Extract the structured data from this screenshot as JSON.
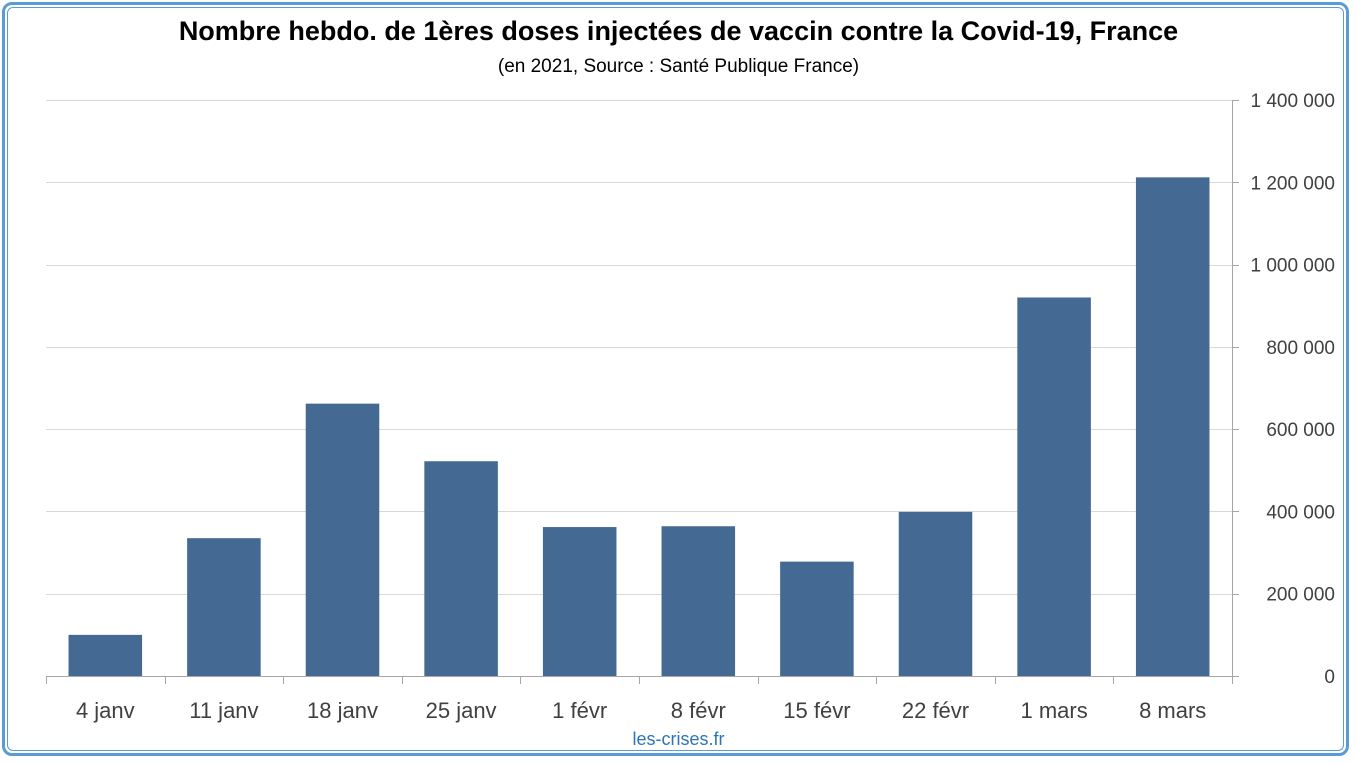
{
  "chart_data": {
    "type": "bar",
    "title": "Nombre hebdo. de 1ères doses injectées de vaccin contre la Covid-19, France",
    "subtitle": "(en 2021, Source : Santé Publique France)",
    "categories": [
      "4 janv",
      "11 janv",
      "18 janv",
      "25 janv",
      "1 févr",
      "8 févr",
      "15 févr",
      "22 févr",
      "1 mars",
      "8 mars"
    ],
    "values": [
      100000,
      335000,
      662000,
      522000,
      362000,
      364000,
      278000,
      399000,
      920000,
      1212000
    ],
    "ylim": [
      0,
      1400000
    ],
    "yticks": [
      0,
      200000,
      400000,
      600000,
      800000,
      1000000,
      1200000,
      1400000
    ],
    "ytick_labels": [
      "0",
      "200 000",
      "400 000",
      "600 000",
      "800 000",
      "1 000 000",
      "1 200 000",
      "1 400 000"
    ],
    "y_axis_position": "right",
    "grid": true,
    "bar_color": "#446993",
    "grid_color": "#d9d9d9"
  },
  "footer": {
    "source_text": "les-crises.fr"
  },
  "colors": {
    "frame": "#5b9bd5",
    "source_link": "#2e75b6"
  }
}
